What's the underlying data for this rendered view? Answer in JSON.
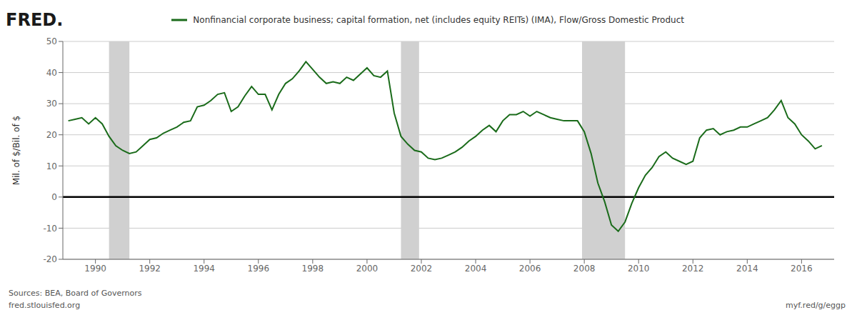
{
  "chart_data": {
    "type": "line",
    "title": "Nonfinancial corporate business; capital formation, net (includes equity REITs) (IMA), Flow/Gross Domestic Product",
    "y_label": "Mil. of $/Bil. of $",
    "annotations": [
      "FRED.",
      "Sources: BEA, Board of Governors",
      "fred.stlouisfed.org",
      "myf.red/g/eggp"
    ],
    "color": "#1a6b1a",
    "grid": true,
    "xlim": [
      1988.8,
      2017.2
    ],
    "xticks": [
      1990,
      1992,
      1994,
      1996,
      1998,
      2000,
      2002,
      2004,
      2006,
      2008,
      2010,
      2012,
      2014,
      2016
    ],
    "ylim": [
      -20,
      50
    ],
    "yticks": [
      -20,
      -10,
      0,
      10,
      20,
      30,
      40,
      50
    ],
    "hlines": [
      {
        "value": 0,
        "color": "#000000"
      }
    ],
    "recession_bands": {
      "color": "#d0d0d0",
      "ranges": [
        [
          1990.5,
          1991.25
        ],
        [
          2001.25,
          2001.917
        ],
        [
          2007.917,
          2009.5
        ]
      ]
    },
    "x": [
      1989.0,
      1989.25,
      1989.5,
      1989.75,
      1990.0,
      1990.25,
      1990.5,
      1990.75,
      1991.0,
      1991.25,
      1991.5,
      1991.75,
      1992.0,
      1992.25,
      1992.5,
      1992.75,
      1993.0,
      1993.25,
      1993.5,
      1993.75,
      1994.0,
      1994.25,
      1994.5,
      1994.75,
      1995.0,
      1995.25,
      1995.5,
      1995.75,
      1996.0,
      1996.25,
      1996.5,
      1996.75,
      1997.0,
      1997.25,
      1997.5,
      1997.75,
      1998.0,
      1998.25,
      1998.5,
      1998.75,
      1999.0,
      1999.25,
      1999.5,
      1999.75,
      2000.0,
      2000.25,
      2000.5,
      2000.75,
      2001.0,
      2001.25,
      2001.5,
      2001.75,
      2002.0,
      2002.25,
      2002.5,
      2002.75,
      2003.0,
      2003.25,
      2003.5,
      2003.75,
      2004.0,
      2004.25,
      2004.5,
      2004.75,
      2005.0,
      2005.25,
      2005.5,
      2005.75,
      2006.0,
      2006.25,
      2006.5,
      2006.75,
      2007.0,
      2007.25,
      2007.5,
      2007.75,
      2008.0,
      2008.25,
      2008.5,
      2008.75,
      2009.0,
      2009.25,
      2009.5,
      2009.75,
      2010.0,
      2010.25,
      2010.5,
      2010.75,
      2011.0,
      2011.25,
      2011.5,
      2011.75,
      2012.0,
      2012.25,
      2012.5,
      2012.75,
      2013.0,
      2013.25,
      2013.5,
      2013.75,
      2014.0,
      2014.25,
      2014.5,
      2014.75,
      2015.0,
      2015.25,
      2015.5,
      2015.75,
      2016.0,
      2016.25,
      2016.5,
      2016.75
    ],
    "values": [
      24.5,
      25.0,
      25.5,
      23.5,
      25.5,
      23.5,
      19.5,
      16.5,
      15.0,
      14.0,
      14.5,
      16.5,
      18.5,
      19.0,
      20.5,
      21.5,
      22.5,
      24.0,
      24.5,
      29.0,
      29.5,
      31.0,
      33.0,
      33.5,
      27.5,
      29.0,
      32.5,
      35.5,
      33.0,
      33.0,
      28.0,
      33.0,
      36.5,
      38.0,
      40.5,
      43.5,
      41.0,
      38.5,
      36.5,
      37.0,
      36.5,
      38.5,
      37.5,
      39.5,
      41.5,
      39.0,
      38.5,
      40.5,
      27.0,
      19.5,
      17.0,
      15.0,
      14.5,
      12.5,
      12.0,
      12.5,
      13.5,
      14.5,
      16.0,
      18.0,
      19.5,
      21.5,
      23.0,
      21.0,
      24.5,
      26.5,
      26.5,
      27.5,
      26.0,
      27.5,
      26.5,
      25.5,
      25.0,
      24.5,
      24.5,
      24.5,
      21.0,
      14.0,
      4.5,
      -1.5,
      -9.0,
      -11.0,
      -8.0,
      -2.0,
      3.0,
      7.0,
      9.5,
      13.0,
      14.5,
      12.5,
      11.5,
      10.5,
      11.5,
      19.0,
      21.5,
      22.0,
      20.0,
      21.0,
      21.5,
      22.5,
      22.5,
      23.5,
      24.5,
      25.5,
      28.0,
      31.0,
      25.5,
      23.5,
      20.0,
      18.0,
      15.5,
      16.5
    ]
  }
}
